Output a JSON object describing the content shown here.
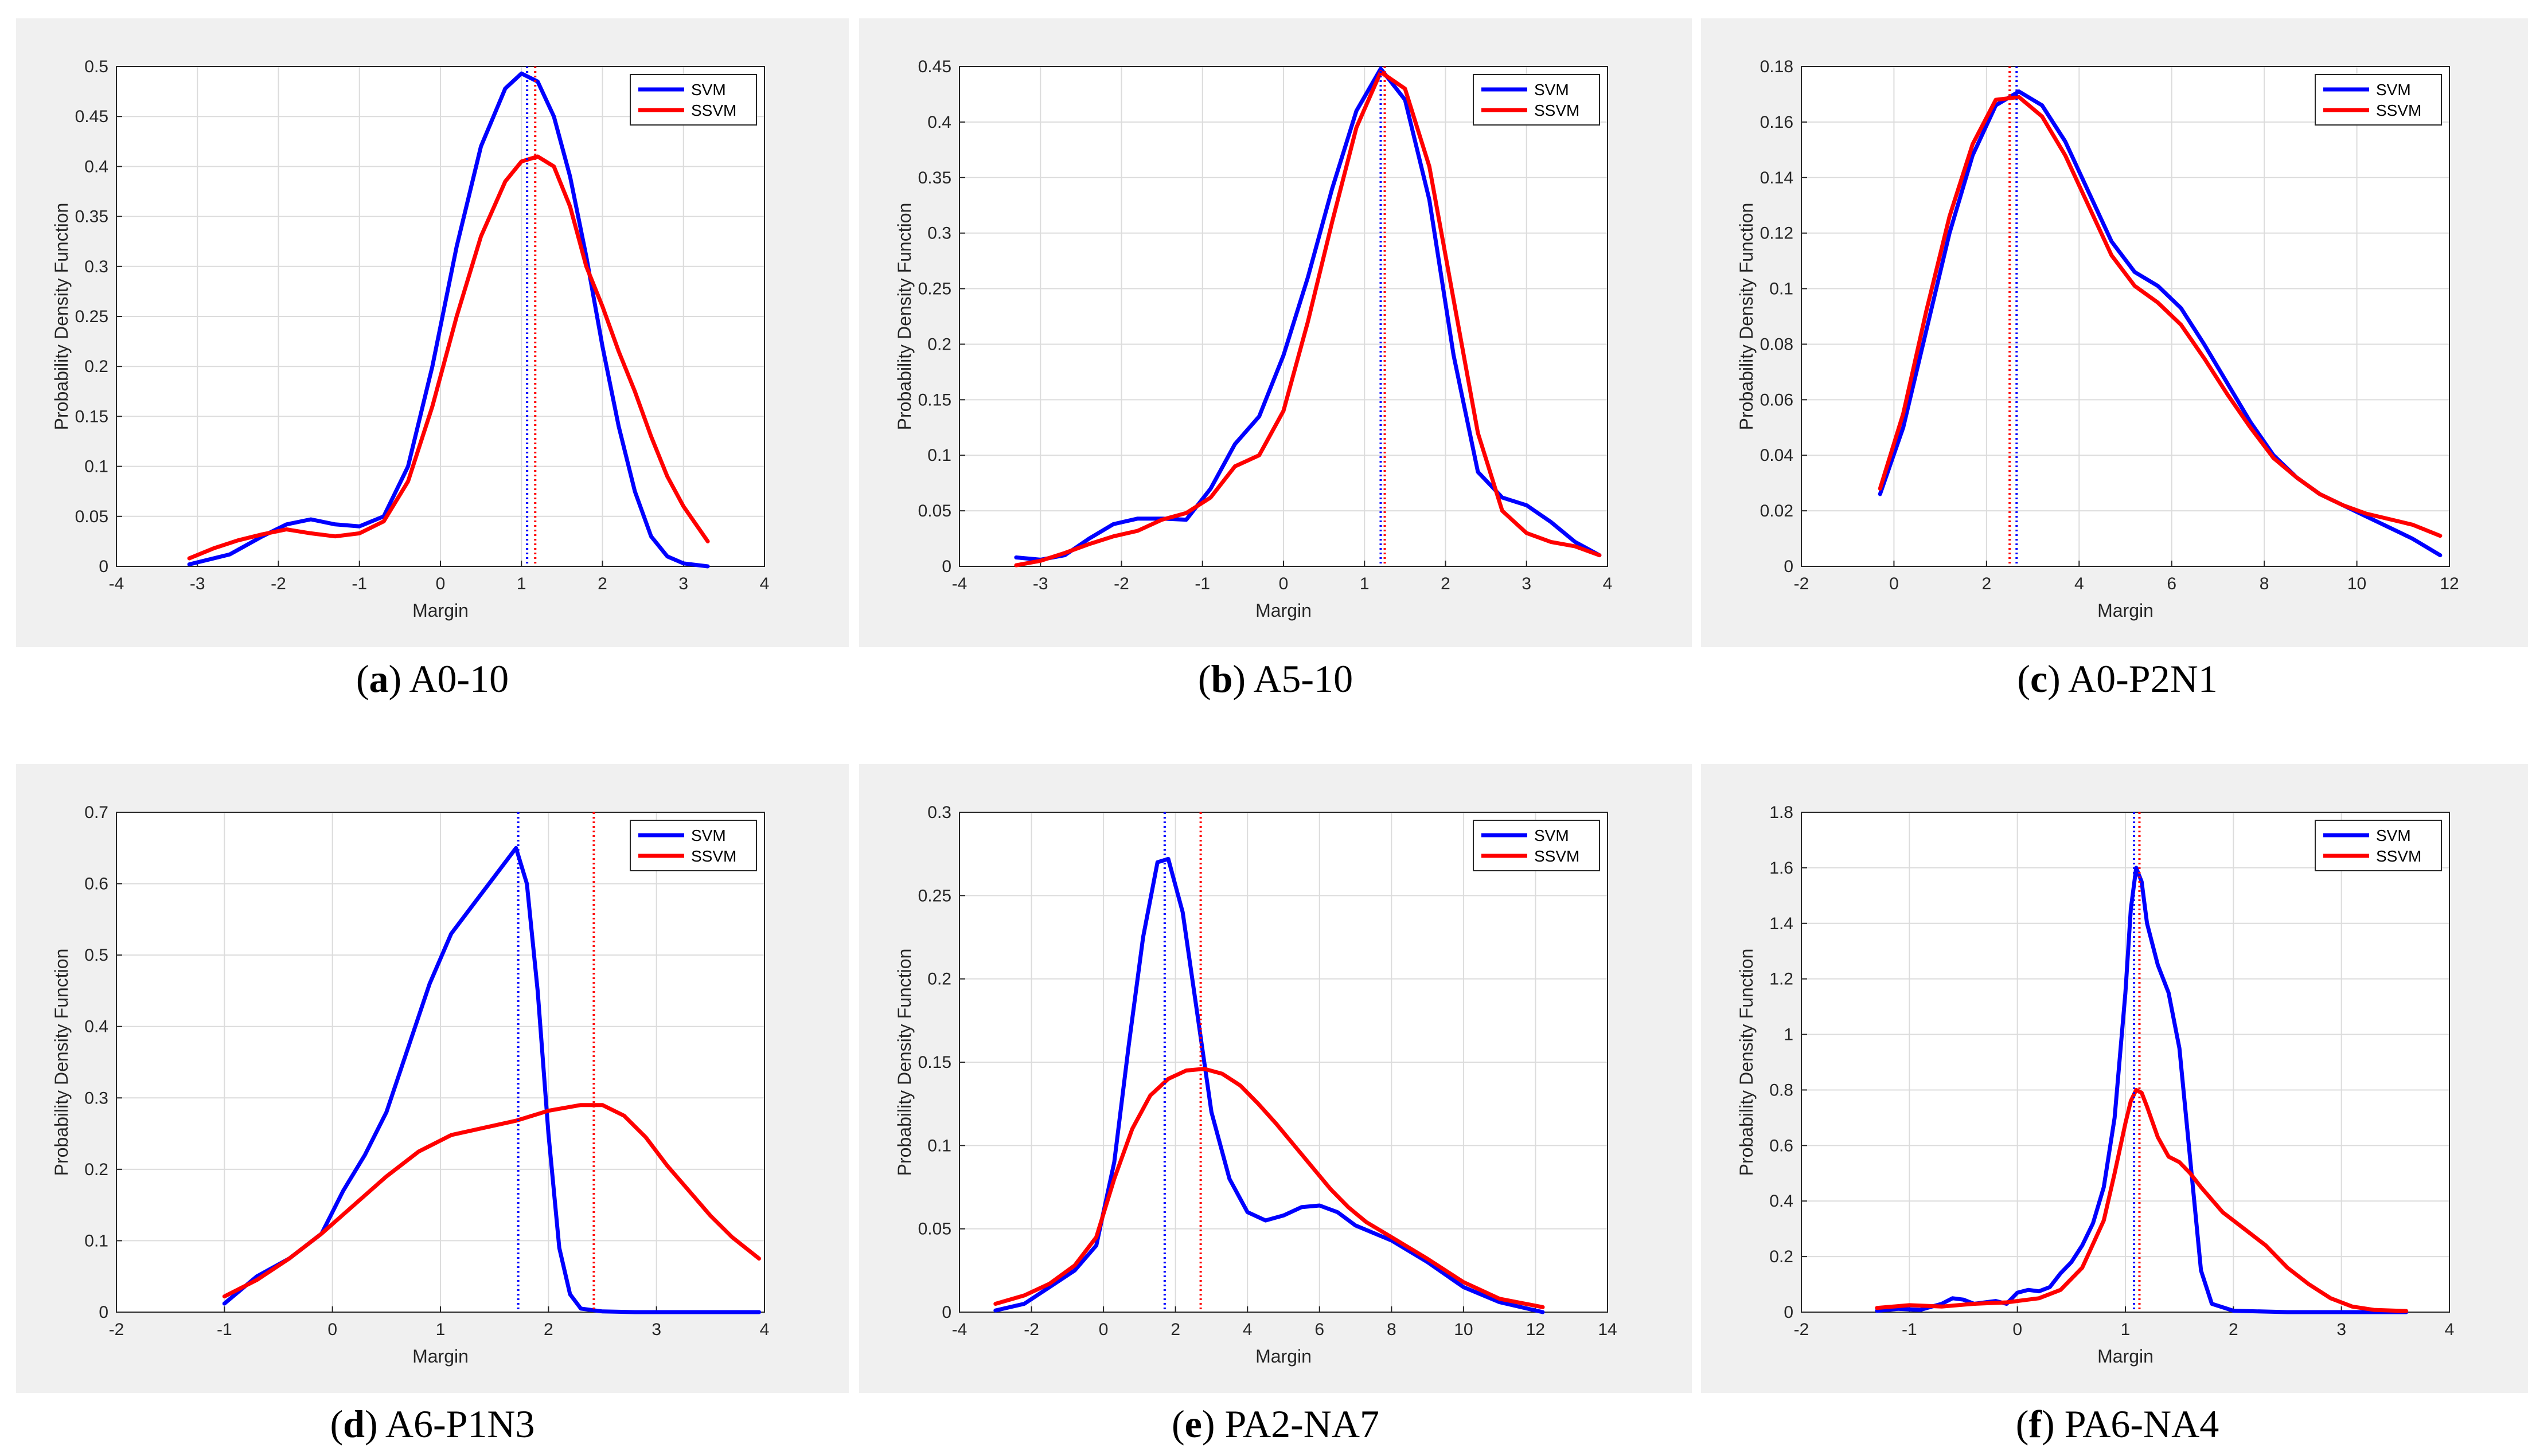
{
  "colors": {
    "svm": "#0000ff",
    "ssvm": "#ff0000",
    "grid": "#dcdcdc",
    "panel_bg": "#f0f0f0",
    "axes": "#262626"
  },
  "chart_data": [
    {
      "type": "line",
      "caption_letter": "a",
      "caption_name": "A0-10",
      "title": "",
      "xlabel": "Margin",
      "ylabel": "Probability Density Function",
      "xlim": [
        -4,
        4
      ],
      "ylim": [
        0,
        0.5
      ],
      "xticks": [
        -4,
        -3,
        -2,
        -1,
        0,
        1,
        2,
        3,
        4
      ],
      "yticks": [
        0,
        0.05,
        0.1,
        0.15,
        0.2,
        0.25,
        0.3,
        0.35,
        0.4,
        0.45,
        0.5
      ],
      "legend": [
        "SVM",
        "SSVM"
      ],
      "legend_position": "top-right",
      "vlines": {
        "SVM": 1.07,
        "SSVM": 1.17
      },
      "series": [
        {
          "name": "SVM",
          "x": [
            -3.1,
            -2.6,
            -2.2,
            -1.9,
            -1.6,
            -1.3,
            -1.0,
            -0.7,
            -0.4,
            -0.1,
            0.2,
            0.5,
            0.8,
            1.0,
            1.2,
            1.4,
            1.6,
            1.8,
            2.0,
            2.2,
            2.4,
            2.6,
            2.8,
            3.0,
            3.3
          ],
          "values": [
            0.002,
            0.012,
            0.03,
            0.042,
            0.047,
            0.042,
            0.04,
            0.05,
            0.1,
            0.2,
            0.32,
            0.42,
            0.478,
            0.493,
            0.485,
            0.45,
            0.39,
            0.31,
            0.22,
            0.14,
            0.075,
            0.03,
            0.01,
            0.003,
            0.0
          ]
        },
        {
          "name": "SSVM",
          "x": [
            -3.1,
            -2.8,
            -2.5,
            -2.2,
            -1.9,
            -1.6,
            -1.3,
            -1.0,
            -0.7,
            -0.4,
            -0.1,
            0.2,
            0.5,
            0.8,
            1.0,
            1.2,
            1.4,
            1.6,
            1.8,
            2.0,
            2.2,
            2.4,
            2.6,
            2.8,
            3.0,
            3.3
          ],
          "values": [
            0.008,
            0.018,
            0.026,
            0.032,
            0.037,
            0.033,
            0.03,
            0.033,
            0.045,
            0.085,
            0.16,
            0.25,
            0.33,
            0.385,
            0.405,
            0.41,
            0.4,
            0.36,
            0.3,
            0.26,
            0.215,
            0.175,
            0.13,
            0.09,
            0.06,
            0.025
          ]
        }
      ]
    },
    {
      "type": "line",
      "caption_letter": "b",
      "caption_name": "A5-10",
      "title": "",
      "xlabel": "Margin",
      "ylabel": "Probability Density Function",
      "xlim": [
        -4,
        4
      ],
      "ylim": [
        0,
        0.45
      ],
      "xticks": [
        -4,
        -3,
        -2,
        -1,
        0,
        1,
        2,
        3,
        4
      ],
      "yticks": [
        0,
        0.05,
        0.1,
        0.15,
        0.2,
        0.25,
        0.3,
        0.35,
        0.4,
        0.45
      ],
      "legend": [
        "SVM",
        "SSVM"
      ],
      "legend_position": "top-right",
      "vlines": {
        "SVM": 1.2,
        "SSVM": 1.25
      },
      "series": [
        {
          "name": "SVM",
          "x": [
            -3.3,
            -3.0,
            -2.7,
            -2.4,
            -2.1,
            -1.8,
            -1.5,
            -1.2,
            -0.9,
            -0.6,
            -0.3,
            0.0,
            0.3,
            0.6,
            0.9,
            1.2,
            1.5,
            1.8,
            2.1,
            2.4,
            2.7,
            3.0,
            3.3,
            3.6,
            3.9
          ],
          "values": [
            0.008,
            0.006,
            0.01,
            0.025,
            0.038,
            0.043,
            0.043,
            0.042,
            0.07,
            0.11,
            0.135,
            0.19,
            0.26,
            0.34,
            0.41,
            0.448,
            0.42,
            0.33,
            0.19,
            0.085,
            0.062,
            0.055,
            0.04,
            0.022,
            0.01
          ]
        },
        {
          "name": "SSVM",
          "x": [
            -3.3,
            -3.0,
            -2.7,
            -2.4,
            -2.1,
            -1.8,
            -1.5,
            -1.2,
            -0.9,
            -0.6,
            -0.3,
            0.0,
            0.3,
            0.6,
            0.9,
            1.2,
            1.5,
            1.8,
            2.1,
            2.4,
            2.7,
            3.0,
            3.3,
            3.6,
            3.9
          ],
          "values": [
            0.001,
            0.005,
            0.012,
            0.02,
            0.027,
            0.032,
            0.042,
            0.048,
            0.062,
            0.09,
            0.1,
            0.14,
            0.22,
            0.31,
            0.395,
            0.445,
            0.43,
            0.36,
            0.24,
            0.12,
            0.05,
            0.03,
            0.022,
            0.018,
            0.01
          ]
        }
      ]
    },
    {
      "type": "line",
      "caption_letter": "c",
      "caption_name": "A0-P2N1",
      "title": "",
      "xlabel": "Margin",
      "ylabel": "Probability Density Function",
      "xlim": [
        -2,
        12
      ],
      "ylim": [
        0,
        0.18
      ],
      "xticks": [
        -2,
        0,
        2,
        4,
        6,
        8,
        10,
        12
      ],
      "yticks": [
        0,
        0.02,
        0.04,
        0.06,
        0.08,
        0.1,
        0.12,
        0.14,
        0.16,
        0.18
      ],
      "legend": [
        "SVM",
        "SSVM"
      ],
      "legend_position": "top-right",
      "vlines": {
        "SVM": 2.65,
        "SSVM": 2.5
      },
      "series": [
        {
          "name": "SVM",
          "x": [
            -0.3,
            0.2,
            0.7,
            1.2,
            1.7,
            2.2,
            2.7,
            3.2,
            3.7,
            4.2,
            4.7,
            5.2,
            5.7,
            6.2,
            6.7,
            7.2,
            7.7,
            8.2,
            8.7,
            9.2,
            9.7,
            10.2,
            10.7,
            11.2,
            11.8
          ],
          "values": [
            0.026,
            0.05,
            0.085,
            0.12,
            0.148,
            0.166,
            0.171,
            0.166,
            0.153,
            0.135,
            0.117,
            0.106,
            0.101,
            0.093,
            0.08,
            0.066,
            0.052,
            0.04,
            0.032,
            0.026,
            0.022,
            0.018,
            0.014,
            0.01,
            0.004
          ]
        },
        {
          "name": "SSVM",
          "x": [
            -0.3,
            0.2,
            0.7,
            1.2,
            1.7,
            2.2,
            2.7,
            3.2,
            3.7,
            4.2,
            4.7,
            5.2,
            5.7,
            6.2,
            6.7,
            7.2,
            7.7,
            8.2,
            8.7,
            9.2,
            9.7,
            10.2,
            10.7,
            11.2,
            11.8
          ],
          "values": [
            0.028,
            0.055,
            0.092,
            0.126,
            0.152,
            0.168,
            0.169,
            0.162,
            0.148,
            0.13,
            0.112,
            0.101,
            0.095,
            0.087,
            0.075,
            0.062,
            0.05,
            0.039,
            0.032,
            0.026,
            0.022,
            0.019,
            0.017,
            0.015,
            0.011
          ]
        }
      ]
    },
    {
      "type": "line",
      "caption_letter": "d",
      "caption_name": "A6-P1N3",
      "title": "",
      "xlabel": "Margin",
      "ylabel": "Probability Density Function",
      "xlim": [
        -2,
        4
      ],
      "ylim": [
        0,
        0.7
      ],
      "xticks": [
        -2,
        -1,
        0,
        1,
        2,
        3,
        4
      ],
      "yticks": [
        0,
        0.1,
        0.2,
        0.3,
        0.4,
        0.5,
        0.6,
        0.7
      ],
      "legend": [
        "SVM",
        "SSVM"
      ],
      "legend_position": "top-right",
      "vlines": {
        "SVM": 1.72,
        "SSVM": 2.42
      },
      "series": [
        {
          "name": "SVM",
          "x": [
            -1.0,
            -0.7,
            -0.4,
            -0.1,
            0.1,
            0.3,
            0.5,
            0.7,
            0.9,
            1.1,
            1.3,
            1.5,
            1.7,
            1.8,
            1.9,
            2.0,
            2.1,
            2.2,
            2.3,
            2.5,
            2.8,
            3.2,
            3.6,
            3.95
          ],
          "values": [
            0.012,
            0.05,
            0.075,
            0.11,
            0.17,
            0.22,
            0.28,
            0.37,
            0.46,
            0.53,
            0.57,
            0.61,
            0.65,
            0.6,
            0.45,
            0.25,
            0.09,
            0.025,
            0.005,
            0.001,
            0.0,
            0.0,
            0.0,
            0.0
          ]
        },
        {
          "name": "SSVM",
          "x": [
            -1.0,
            -0.7,
            -0.4,
            -0.1,
            0.2,
            0.5,
            0.8,
            1.1,
            1.4,
            1.7,
            2.0,
            2.3,
            2.5,
            2.7,
            2.9,
            3.1,
            3.3,
            3.5,
            3.7,
            3.95
          ],
          "values": [
            0.022,
            0.045,
            0.075,
            0.11,
            0.15,
            0.19,
            0.225,
            0.248,
            0.258,
            0.268,
            0.282,
            0.29,
            0.29,
            0.275,
            0.245,
            0.205,
            0.17,
            0.135,
            0.105,
            0.075
          ]
        }
      ]
    },
    {
      "type": "line",
      "caption_letter": "e",
      "caption_name": "PA2-NA7",
      "title": "",
      "xlabel": "Margin",
      "ylabel": "Probability Density Function",
      "xlim": [
        -4,
        14
      ],
      "ylim": [
        0,
        0.3
      ],
      "xticks": [
        -4,
        -2,
        0,
        2,
        4,
        6,
        8,
        10,
        12,
        14
      ],
      "yticks": [
        0,
        0.05,
        0.1,
        0.15,
        0.2,
        0.25,
        0.3
      ],
      "legend": [
        "SVM",
        "SSVM"
      ],
      "legend_position": "top-right",
      "vlines": {
        "SVM": 1.7,
        "SSVM": 2.7
      },
      "series": [
        {
          "name": "SVM",
          "x": [
            -3.0,
            -2.2,
            -1.5,
            -0.8,
            -0.2,
            0.3,
            0.7,
            1.1,
            1.5,
            1.8,
            2.2,
            2.6,
            3.0,
            3.5,
            4.0,
            4.5,
            5.0,
            5.5,
            6.0,
            6.5,
            7.0,
            8.0,
            9.0,
            10.0,
            11.0,
            12.2
          ],
          "values": [
            0.001,
            0.005,
            0.015,
            0.025,
            0.04,
            0.09,
            0.16,
            0.225,
            0.27,
            0.272,
            0.24,
            0.18,
            0.12,
            0.08,
            0.06,
            0.055,
            0.058,
            0.063,
            0.064,
            0.06,
            0.052,
            0.043,
            0.03,
            0.015,
            0.006,
            0.0
          ]
        },
        {
          "name": "SSVM",
          "x": [
            -3.0,
            -2.2,
            -1.5,
            -0.8,
            -0.2,
            0.3,
            0.8,
            1.3,
            1.8,
            2.3,
            2.8,
            3.3,
            3.8,
            4.3,
            4.8,
            5.3,
            5.8,
            6.3,
            6.8,
            7.3,
            8.0,
            9.0,
            10.0,
            11.0,
            12.2
          ],
          "values": [
            0.005,
            0.01,
            0.017,
            0.028,
            0.045,
            0.08,
            0.11,
            0.13,
            0.14,
            0.145,
            0.146,
            0.143,
            0.136,
            0.125,
            0.113,
            0.1,
            0.087,
            0.074,
            0.063,
            0.054,
            0.045,
            0.032,
            0.018,
            0.008,
            0.003
          ]
        }
      ]
    },
    {
      "type": "line",
      "caption_letter": "f",
      "caption_name": "PA6-NA4",
      "title": "",
      "xlabel": "Margin",
      "ylabel": "Probability Density Function",
      "xlim": [
        -2,
        4
      ],
      "ylim": [
        0,
        1.8
      ],
      "xticks": [
        -2,
        -1,
        0,
        1,
        2,
        3,
        4
      ],
      "yticks": [
        0,
        0.2,
        0.4,
        0.6,
        0.8,
        1,
        1.2,
        1.4,
        1.6,
        1.8
      ],
      "legend": [
        "SVM",
        "SSVM"
      ],
      "legend_position": "top-right",
      "vlines": {
        "SVM": 1.08,
        "SSVM": 1.13
      },
      "series": [
        {
          "name": "SVM",
          "x": [
            -1.3,
            -1.1,
            -0.9,
            -0.7,
            -0.6,
            -0.5,
            -0.4,
            -0.3,
            -0.2,
            -0.1,
            0.0,
            0.1,
            0.2,
            0.3,
            0.4,
            0.5,
            0.6,
            0.7,
            0.8,
            0.9,
            1.0,
            1.05,
            1.1,
            1.15,
            1.2,
            1.3,
            1.4,
            1.5,
            1.6,
            1.7,
            1.8,
            2.0,
            2.5,
            3.0,
            3.6
          ],
          "values": [
            0.005,
            0.012,
            0.008,
            0.03,
            0.05,
            0.045,
            0.03,
            0.035,
            0.04,
            0.03,
            0.07,
            0.08,
            0.075,
            0.09,
            0.14,
            0.18,
            0.24,
            0.32,
            0.45,
            0.7,
            1.15,
            1.45,
            1.6,
            1.55,
            1.4,
            1.25,
            1.15,
            0.95,
            0.55,
            0.15,
            0.03,
            0.005,
            0.0,
            0.0,
            0.0
          ]
        },
        {
          "name": "SSVM",
          "x": [
            -1.3,
            -1.0,
            -0.7,
            -0.4,
            -0.1,
            0.2,
            0.4,
            0.6,
            0.8,
            0.9,
            1.0,
            1.05,
            1.1,
            1.15,
            1.2,
            1.3,
            1.4,
            1.5,
            1.6,
            1.7,
            1.9,
            2.1,
            2.3,
            2.5,
            2.7,
            2.9,
            3.1,
            3.3,
            3.6
          ],
          "values": [
            0.015,
            0.025,
            0.02,
            0.03,
            0.035,
            0.05,
            0.08,
            0.16,
            0.33,
            0.5,
            0.68,
            0.76,
            0.8,
            0.79,
            0.74,
            0.63,
            0.56,
            0.54,
            0.5,
            0.45,
            0.36,
            0.3,
            0.24,
            0.16,
            0.1,
            0.05,
            0.02,
            0.008,
            0.004
          ]
        }
      ]
    }
  ]
}
